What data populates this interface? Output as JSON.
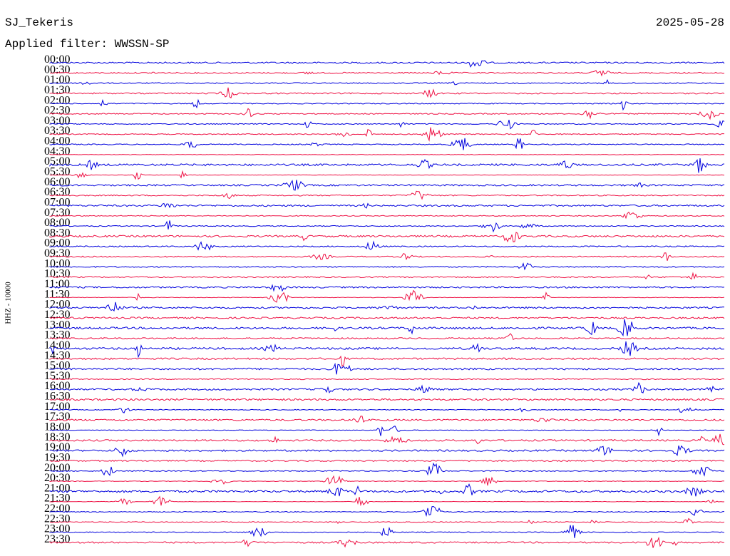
{
  "header": {
    "station": "SJ_Tekeris",
    "date": "2025-05-28",
    "filter": "Applied filter: WWSSN-SP"
  },
  "axis_label": "HHZ - 10000",
  "trace_colors": [
    "#0000dd",
    "#ee1144"
  ],
  "rows": [
    "00:00",
    "00:30",
    "01:00",
    "01:30",
    "02:00",
    "02:30",
    "03:00",
    "03:30",
    "04:00",
    "04:30",
    "05:00",
    "05:30",
    "06:00",
    "06:30",
    "07:00",
    "07:30",
    "08:00",
    "08:30",
    "09:00",
    "09:30",
    "10:00",
    "10:30",
    "11:00",
    "11:30",
    "12:00",
    "12:30",
    "13:00",
    "13:30",
    "14:00",
    "14:30",
    "15:00",
    "15:30",
    "16:00",
    "16:30",
    "17:00",
    "17:30",
    "18:00",
    "18:30",
    "19:00",
    "19:30",
    "20:00",
    "20:30",
    "21:00",
    "21:30",
    "22:00",
    "22:30",
    "23:00",
    "23:30"
  ]
}
